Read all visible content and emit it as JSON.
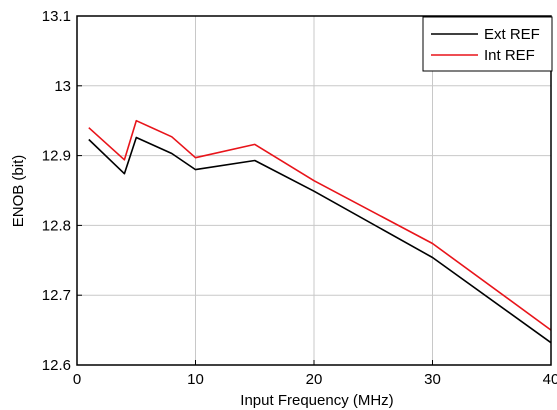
{
  "chart_data": {
    "type": "line",
    "title": "",
    "xlabel": "Input Frequency (MHz)",
    "ylabel": "ENOB (bit)",
    "xlim": [
      0,
      40
    ],
    "ylim": [
      12.6,
      13.1
    ],
    "x_ticks": [
      0,
      10,
      20,
      30,
      40
    ],
    "y_ticks": [
      12.6,
      12.7,
      12.8,
      12.9,
      13,
      13.1
    ],
    "x_tick_labels": [
      "0",
      "10",
      "20",
      "30",
      "40"
    ],
    "y_tick_labels": [
      "12.6",
      "12.7",
      "12.8",
      "12.9",
      "13",
      "13.1"
    ],
    "grid": true,
    "legend_position": "top-right",
    "series": [
      {
        "name": "Ext REF",
        "color": "#000000",
        "x": [
          1,
          4,
          5,
          8,
          10,
          15,
          20,
          30,
          40
        ],
        "y": [
          12.923,
          12.874,
          12.926,
          12.903,
          12.88,
          12.893,
          12.849,
          12.754,
          12.632
        ]
      },
      {
        "name": "Int REF",
        "color": "#e8141a",
        "x": [
          1,
          4,
          5,
          8,
          10,
          15,
          20,
          30,
          40
        ],
        "y": [
          12.94,
          12.894,
          12.95,
          12.927,
          12.897,
          12.916,
          12.864,
          12.774,
          12.65
        ]
      }
    ]
  }
}
